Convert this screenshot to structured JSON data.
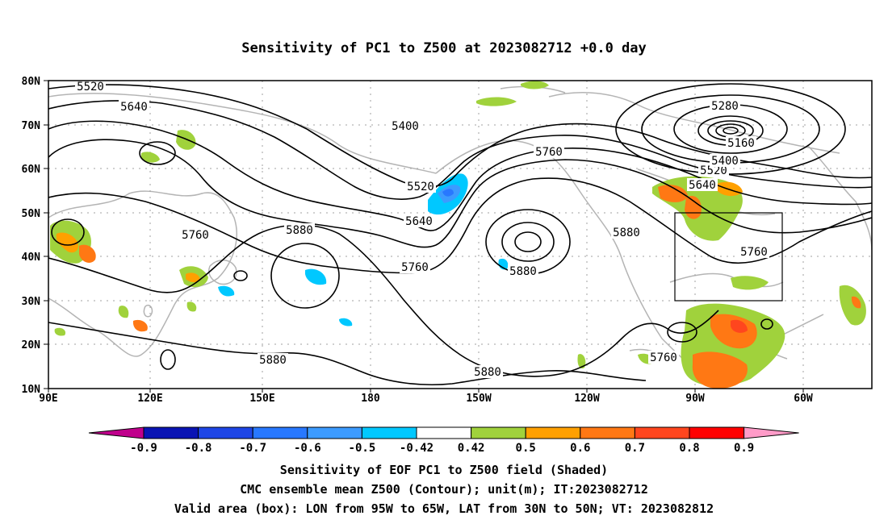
{
  "title": "Sensitivity of PC1 to Z500 at 2023082712 +0.0 day",
  "captions": [
    "Sensitivity of EOF PC1 to Z500 field (Shaded)",
    "CMC ensemble mean Z500 (Contour); unit(m); IT:2023082712",
    "Valid area (box): LON from 95W to 65W, LAT from 30N to 50N; VT: 2023082812"
  ],
  "map": {
    "lon_ticks": [
      "90E",
      "120E",
      "150E",
      "180",
      "150W",
      "120W",
      "90W",
      "60W"
    ],
    "lat_ticks": [
      "80N",
      "70N",
      "60N",
      "50N",
      "40N",
      "30N",
      "20N",
      "10N"
    ],
    "contour_labels": [
      "5520",
      "5640",
      "5400",
      "5520",
      "5640",
      "5760",
      "5880",
      "5760",
      "5760",
      "5640",
      "5520",
      "5400",
      "5280",
      "5160",
      "5880",
      "5760",
      "5880",
      "5880",
      "5880",
      "5760"
    ],
    "valid_box": {
      "lon_min": "95W",
      "lon_max": "65W",
      "lat_min": "30N",
      "lat_max": "50N"
    },
    "colors": {
      "land": "#b4b4b4",
      "contour": "#000000",
      "grid": "#a0a0a0"
    }
  },
  "colorbar": {
    "labels": [
      "-0.9",
      "-0.8",
      "-0.7",
      "-0.6",
      "-0.5",
      "-0.42",
      "0.42",
      "0.5",
      "0.6",
      "0.7",
      "0.8",
      "0.9"
    ],
    "colors": [
      "#c0008c",
      "#0a14b4",
      "#1e46e6",
      "#2878ff",
      "#3c9bff",
      "#00c8ff",
      "#ffffff",
      "#a0d23c",
      "#ffa000",
      "#ff7814",
      "#ff461e",
      "#ff0000",
      "#ff9bc8"
    ]
  }
}
